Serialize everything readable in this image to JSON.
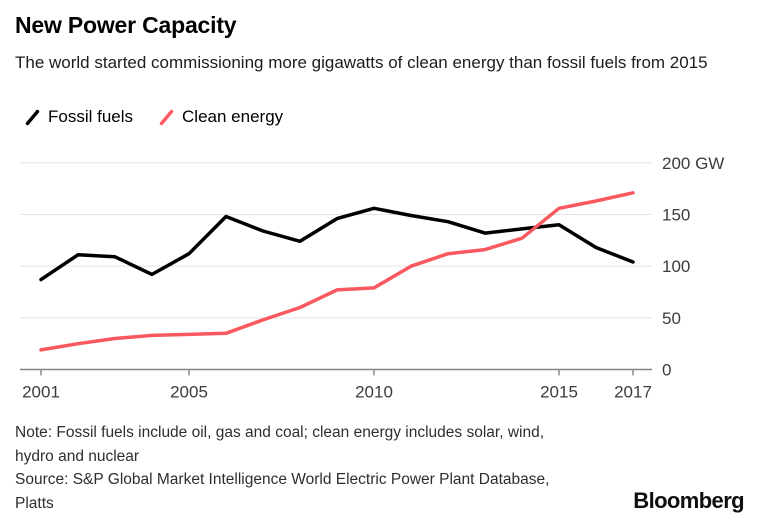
{
  "header": {
    "title": "New Power Capacity",
    "subtitle": "The world started commissioning more gigawatts of clean energy than fossil fuels from 2015"
  },
  "legend": [
    {
      "label": "Fossil fuels",
      "color": "#000000"
    },
    {
      "label": "Clean energy",
      "color": "#f8585e"
    }
  ],
  "chart_data": {
    "type": "line",
    "title": "New Power Capacity",
    "x": [
      2001,
      2002,
      2003,
      2004,
      2005,
      2006,
      2007,
      2008,
      2009,
      2010,
      2011,
      2012,
      2013,
      2014,
      2015,
      2016,
      2017
    ],
    "series": [
      {
        "name": "Fossil fuels",
        "color": "#000000",
        "values": [
          87,
          111,
          109,
          92,
          112,
          148,
          134,
          124,
          146,
          156,
          149,
          143,
          132,
          136,
          140,
          118,
          104
        ]
      },
      {
        "name": "Clean energy",
        "color": "#f8585e",
        "values": [
          19,
          25,
          30,
          33,
          34,
          35,
          48,
          60,
          77,
          79,
          100,
          112,
          116,
          127,
          156,
          163,
          171
        ]
      }
    ],
    "unit": "GW",
    "ylim": [
      0,
      200
    ],
    "yticks": [
      0,
      50,
      100,
      150,
      200
    ],
    "ytick_labels": [
      "0",
      "50",
      "100",
      "150",
      "200 GW"
    ],
    "xlim": [
      2001,
      2017
    ],
    "xticks": [
      2001,
      2005,
      2010,
      2015,
      2017
    ],
    "xtick_labels": [
      "2001",
      "2005",
      "2010",
      "2015",
      "2017"
    ],
    "grid": true,
    "legend_position": "top-left",
    "colors": {
      "gridline": "#e3e3e3",
      "axis": "#858585",
      "tick_label": "#3c3c3c"
    }
  },
  "footer": {
    "note": [
      "Note: Fossil fuels include oil, gas and coal; clean energy includes solar, wind,",
      "hydro and nuclear"
    ],
    "source": [
      "Source: S&P Global Market Intelligence World Electric Power Plant Database,",
      "Platts"
    ],
    "brand": "Bloomberg"
  }
}
